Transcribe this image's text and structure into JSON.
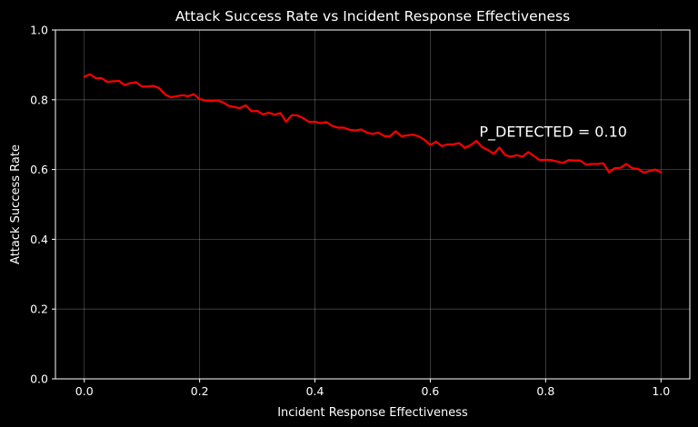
{
  "chart_data": {
    "type": "line",
    "title": "Attack Success Rate vs Incident Response Effectiveness",
    "xlabel": "Incident Response Effectiveness",
    "ylabel": "Attack Success Rate",
    "xlim": [
      -0.05,
      1.05
    ],
    "ylim": [
      0.0,
      1.0
    ],
    "xticks": [
      "0.0",
      "0.2",
      "0.4",
      "0.6",
      "0.8",
      "1.0"
    ],
    "yticks": [
      "0.0",
      "0.2",
      "0.4",
      "0.6",
      "0.8",
      "1.0"
    ],
    "grid": true,
    "annotation": {
      "text": "P_DETECTED = 0.10",
      "x": 0.685,
      "y": 0.71
    },
    "series": [
      {
        "color": "#ff0000",
        "x": [
          0.0,
          0.01,
          0.02,
          0.03,
          0.04,
          0.05,
          0.06,
          0.07,
          0.08,
          0.09,
          0.1,
          0.11,
          0.12,
          0.13,
          0.14,
          0.15,
          0.16,
          0.17,
          0.18,
          0.19,
          0.2,
          0.21,
          0.22,
          0.23,
          0.24,
          0.25,
          0.26,
          0.27,
          0.28,
          0.29,
          0.3,
          0.31,
          0.32,
          0.33,
          0.34,
          0.35,
          0.36,
          0.37,
          0.38,
          0.39,
          0.4,
          0.41,
          0.42,
          0.43,
          0.44,
          0.45,
          0.46,
          0.47,
          0.48,
          0.49,
          0.5,
          0.51,
          0.52,
          0.53,
          0.54,
          0.55,
          0.56,
          0.57,
          0.58,
          0.59,
          0.6,
          0.61,
          0.62,
          0.63,
          0.64,
          0.65,
          0.66,
          0.67,
          0.68,
          0.69,
          0.7,
          0.71,
          0.72,
          0.73,
          0.74,
          0.75,
          0.76,
          0.77,
          0.78,
          0.79,
          0.8,
          0.81,
          0.82,
          0.83,
          0.84,
          0.85,
          0.86,
          0.87,
          0.88,
          0.89,
          0.9,
          0.91,
          0.92,
          0.93,
          0.94,
          0.95,
          0.96,
          0.97,
          0.98,
          0.99,
          1.0
        ],
        "y": [
          0.866,
          0.873,
          0.862,
          0.862,
          0.851,
          0.853,
          0.854,
          0.842,
          0.848,
          0.85,
          0.838,
          0.838,
          0.84,
          0.833,
          0.815,
          0.807,
          0.81,
          0.813,
          0.81,
          0.816,
          0.802,
          0.798,
          0.796,
          0.798,
          0.793,
          0.783,
          0.779,
          0.776,
          0.784,
          0.767,
          0.768,
          0.758,
          0.763,
          0.757,
          0.762,
          0.737,
          0.756,
          0.755,
          0.747,
          0.736,
          0.737,
          0.733,
          0.736,
          0.725,
          0.72,
          0.72,
          0.714,
          0.712,
          0.715,
          0.706,
          0.702,
          0.706,
          0.696,
          0.695,
          0.71,
          0.695,
          0.698,
          0.7,
          0.695,
          0.685,
          0.67,
          0.68,
          0.667,
          0.672,
          0.672,
          0.676,
          0.662,
          0.67,
          0.682,
          0.664,
          0.656,
          0.645,
          0.663,
          0.641,
          0.637,
          0.641,
          0.637,
          0.65,
          0.638,
          0.627,
          0.628,
          0.627,
          0.623,
          0.619,
          0.627,
          0.626,
          0.626,
          0.614,
          0.616,
          0.616,
          0.618,
          0.592,
          0.604,
          0.605,
          0.616,
          0.604,
          0.602,
          0.591,
          0.596,
          0.6,
          0.592
        ]
      }
    ]
  }
}
